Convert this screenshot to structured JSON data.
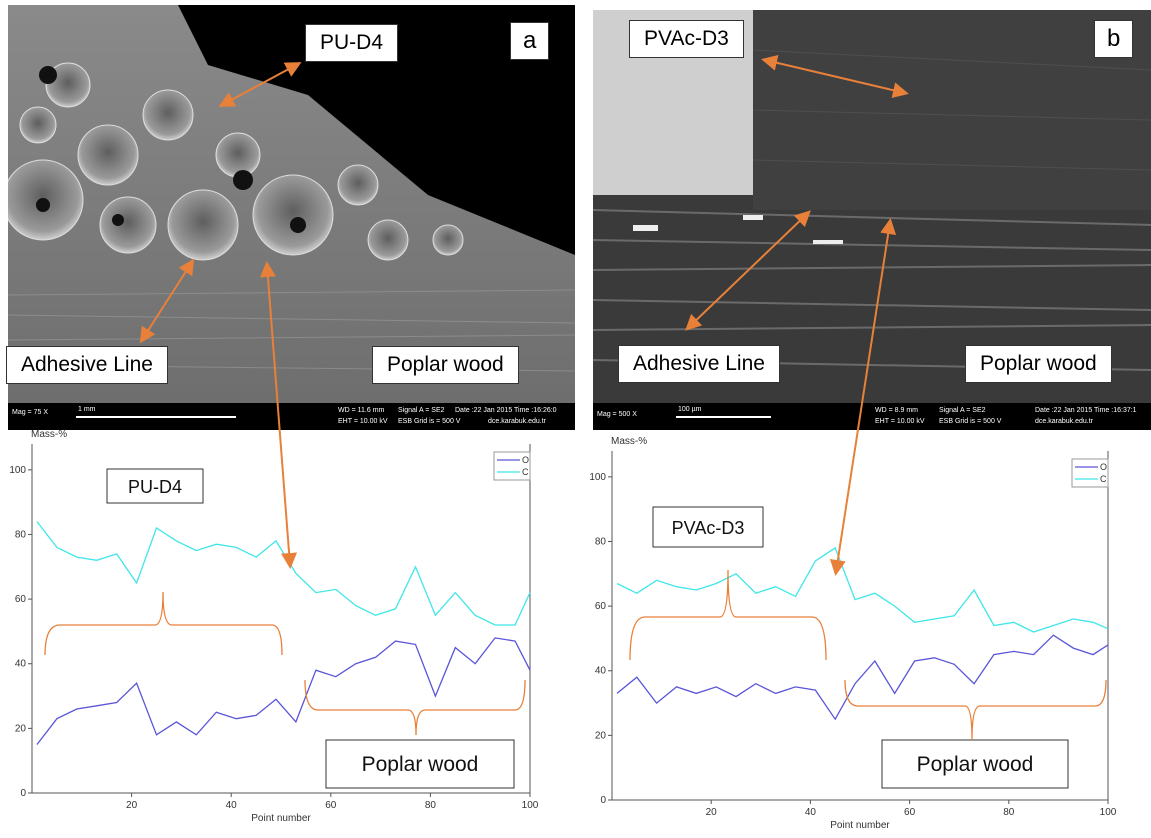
{
  "panels": [
    {
      "name": "PU-D4",
      "letter": "a",
      "adhesive": "Adhesive Line",
      "wood": "Poplar wood",
      "info": [
        "Mag =   75 X",
        "1 mm",
        "WD = 11.6 mm",
        "Signal A = SE2",
        "Date :22 Jan 2015  Time :16:26:0",
        "EHT = 10.00 kV",
        "ESB Grid is =   500 V",
        "dce.karabuk.edu.tr"
      ]
    },
    {
      "name": "PVAc-D3",
      "letter": "b",
      "adhesive": "Adhesive Line",
      "wood": "Poplar wood",
      "info": [
        "Mag =  500 X",
        "100 µm",
        "WD = 8.9 mm",
        "Signal A = SE2",
        "Date :22 Jan 2015  Time :16:37:1",
        "EHT = 10.00 kV",
        "ESB Grid is =   500 V",
        "dce.karabuk.edu.tr"
      ]
    }
  ],
  "chart_data": [
    {
      "type": "line",
      "y_label": "Mass-%",
      "x_label": "Point number",
      "annotations": [
        "PU-D4",
        "Poplar wood"
      ],
      "x": [
        1,
        5,
        9,
        13,
        17,
        21,
        25,
        29,
        33,
        37,
        41,
        45,
        49,
        53,
        57,
        61,
        65,
        69,
        73,
        77,
        81,
        85,
        89,
        93,
        97,
        100
      ],
      "series": [
        {
          "name": "O",
          "color": "#5a55d8",
          "values": [
            15,
            23,
            26,
            27,
            28,
            34,
            18,
            22,
            18,
            25,
            23,
            24,
            29,
            22,
            38,
            36,
            40,
            42,
            47,
            46,
            30,
            45,
            40,
            48,
            47,
            38
          ]
        },
        {
          "name": "C",
          "color": "#3fe6e8",
          "values": [
            84,
            76,
            73,
            72,
            74,
            65,
            82,
            78,
            75,
            77,
            76,
            73,
            78,
            68,
            62,
            63,
            58,
            55,
            57,
            70,
            55,
            62,
            55,
            52,
            52,
            62
          ]
        }
      ],
      "xlim": [
        0,
        100
      ],
      "ylim": [
        0,
        108
      ],
      "xticks": [
        20,
        40,
        60,
        80,
        100
      ],
      "yticks": [
        0,
        20,
        40,
        60,
        80,
        100
      ]
    },
    {
      "type": "line",
      "y_label": "Mass-%",
      "x_label": "Point number",
      "annotations": [
        "PVAc-D3",
        "Poplar wood"
      ],
      "x": [
        1,
        5,
        9,
        13,
        17,
        21,
        25,
        29,
        33,
        37,
        41,
        45,
        49,
        53,
        57,
        61,
        65,
        69,
        73,
        77,
        81,
        85,
        89,
        93,
        97,
        100
      ],
      "series": [
        {
          "name": "O",
          "color": "#5a55d8",
          "values": [
            33,
            38,
            30,
            35,
            33,
            35,
            32,
            36,
            33,
            35,
            34,
            25,
            36,
            43,
            33,
            43,
            44,
            42,
            36,
            45,
            46,
            45,
            51,
            47,
            45,
            48
          ]
        },
        {
          "name": "C",
          "color": "#3fe6e8",
          "values": [
            67,
            64,
            68,
            66,
            65,
            67,
            70,
            64,
            66,
            63,
            74,
            78,
            62,
            64,
            60,
            55,
            56,
            57,
            65,
            54,
            55,
            52,
            54,
            56,
            55,
            53
          ]
        }
      ],
      "xlim": [
        0,
        100
      ],
      "ylim": [
        0,
        108
      ],
      "xticks": [
        20,
        40,
        60,
        80,
        100
      ],
      "yticks": [
        0,
        20,
        40,
        60,
        80,
        100
      ]
    }
  ]
}
